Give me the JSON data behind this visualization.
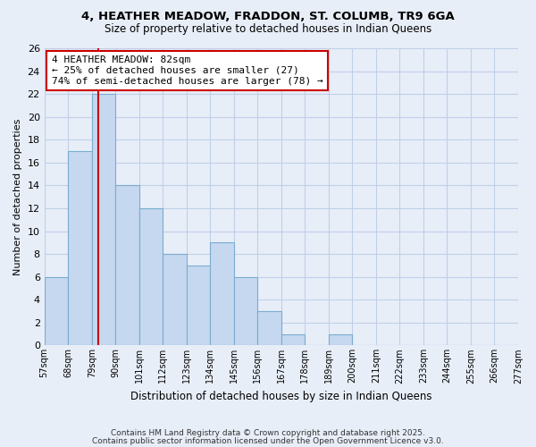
{
  "title": "4, HEATHER MEADOW, FRADDON, ST. COLUMB, TR9 6GA",
  "subtitle": "Size of property relative to detached houses in Indian Queens",
  "xlabel": "Distribution of detached houses by size in Indian Queens",
  "ylabel": "Number of detached properties",
  "bar_color": "#c5d8ef",
  "bar_edge_color": "#7aadcf",
  "background_color": "#e8eef8",
  "plot_bg_color": "#e8eef8",
  "grid_color": "#c0cfe8",
  "bins": [
    57,
    68,
    79,
    90,
    101,
    112,
    123,
    134,
    145,
    156,
    167,
    178,
    189,
    200,
    211,
    222,
    233,
    244,
    255,
    266,
    277
  ],
  "counts": [
    6,
    17,
    22,
    14,
    12,
    8,
    7,
    9,
    6,
    3,
    1,
    0,
    1,
    0,
    0,
    0,
    0,
    0,
    0,
    0
  ],
  "bin_labels": [
    "57sqm",
    "68sqm",
    "79sqm",
    "90sqm",
    "101sqm",
    "112sqm",
    "123sqm",
    "134sqm",
    "145sqm",
    "156sqm",
    "167sqm",
    "178sqm",
    "189sqm",
    "200sqm",
    "211sqm",
    "222sqm",
    "233sqm",
    "244sqm",
    "255sqm",
    "266sqm",
    "277sqm"
  ],
  "vline_x": 82,
  "vline_color": "#cc0000",
  "ylim": [
    0,
    26
  ],
  "yticks": [
    0,
    2,
    4,
    6,
    8,
    10,
    12,
    14,
    16,
    18,
    20,
    22,
    24,
    26
  ],
  "annotation_title": "4 HEATHER MEADOW: 82sqm",
  "annotation_line1": "← 25% of detached houses are smaller (27)",
  "annotation_line2": "74% of semi-detached houses are larger (78) →",
  "annotation_box_color": "#ffffff",
  "annotation_border_color": "#cc0000",
  "footer1": "Contains HM Land Registry data © Crown copyright and database right 2025.",
  "footer2": "Contains public sector information licensed under the Open Government Licence v3.0."
}
